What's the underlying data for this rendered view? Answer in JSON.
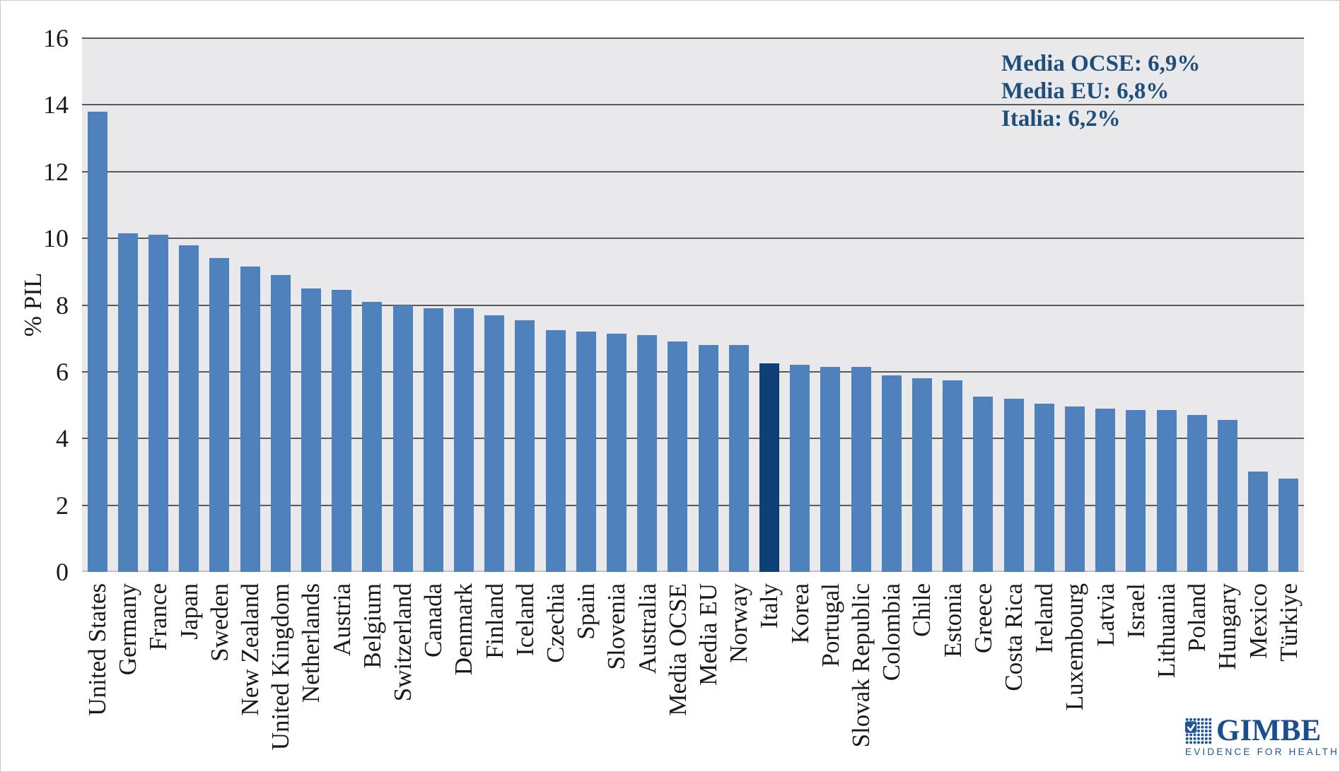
{
  "chart_data": {
    "type": "bar",
    "title": "",
    "xlabel": "",
    "ylabel": "% PIL",
    "ylim": [
      0,
      16
    ],
    "yticks": [
      0,
      2,
      4,
      6,
      8,
      10,
      12,
      14,
      16
    ],
    "grid": true,
    "legend_position": "none",
    "categories": [
      "United States",
      "Germany",
      "France",
      "Japan",
      "Sweden",
      "New Zealand",
      "United Kingdom",
      "Netherlands",
      "Austria",
      "Belgium",
      "Switzerland",
      "Canada",
      "Denmark",
      "Finland",
      "Iceland",
      "Czechia",
      "Spain",
      "Slovenia",
      "Australia",
      "Media OCSE",
      "Media EU",
      "Norway",
      "Italy",
      "Korea",
      "Portugal",
      "Slovak Republic",
      "Colombia",
      "Chile",
      "Estonia",
      "Greece",
      "Costa Rica",
      "Ireland",
      "Luxembourg",
      "Latvia",
      "Israel",
      "Lithuania",
      "Poland",
      "Hungary",
      "Mexico",
      "Türkiye"
    ],
    "values": [
      13.8,
      10.15,
      10.1,
      9.8,
      9.4,
      9.15,
      8.9,
      8.5,
      8.45,
      8.1,
      8.0,
      7.9,
      7.9,
      7.7,
      7.55,
      7.25,
      7.2,
      7.15,
      7.1,
      6.9,
      6.8,
      6.8,
      6.25,
      6.2,
      6.15,
      6.15,
      5.9,
      5.8,
      5.75,
      5.25,
      5.2,
      5.05,
      4.95,
      4.9,
      4.85,
      4.85,
      4.7,
      4.55,
      3.0,
      2.8
    ],
    "highlight_category": "Italy",
    "annotations": [
      "Media OCSE: 6,9%",
      "Media EU: 6,8%",
      "Italia: 6,2%"
    ]
  },
  "colors": {
    "bar": "#4f81bd",
    "highlight_bar": "#0d4076",
    "plot_background": "#e9e9ec",
    "gridline": "#5a5a5a",
    "annotation_text": "#1f4e79",
    "logo_blue": "#1b4e8e"
  },
  "logo": {
    "name": "GIMBE",
    "tagline": "EVIDENCE FOR HEALTH"
  }
}
